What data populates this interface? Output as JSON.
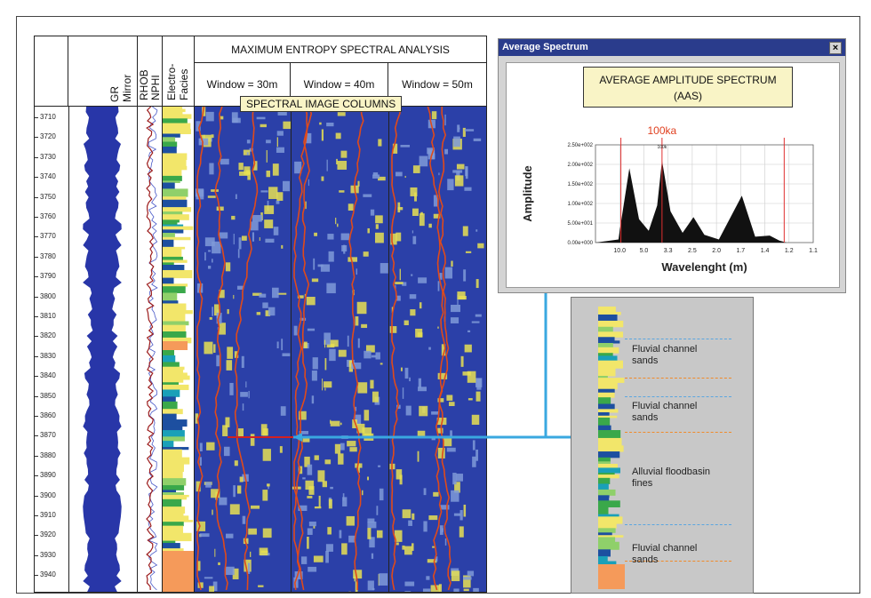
{
  "log_panel": {
    "headers": {
      "gr": "GR",
      "mirror": "Mirror",
      "rhob": "RHOB",
      "nphi": "NPHI",
      "electro": "Electro-",
      "facies": "Facies",
      "mesa_title": "MAXIMUM ENTROPY SPECTRAL ANALYSIS",
      "windows": [
        "Window = 30m",
        "Window = 40m",
        "Window = 50m"
      ]
    },
    "spectral_label": "SPECTRAL IMAGE COLUMNS",
    "depths": [
      "3710",
      "3720",
      "3730",
      "3740",
      "3750",
      "3760",
      "3770",
      "3780",
      "3790",
      "3800",
      "3810",
      "3820",
      "3830",
      "3840",
      "3850",
      "3860",
      "3870",
      "3880",
      "3890",
      "3900",
      "3910",
      "3920",
      "3930",
      "3940"
    ]
  },
  "average_spectrum": {
    "window_title": "Average Spectrum",
    "close_label": "×",
    "aas_title_line1": "AVERAGE AMPLITUDE SPECTRUM",
    "aas_title_line2": "(AAS)",
    "marker_label": "100ka",
    "marker_small": "100k",
    "chart_data": {
      "type": "area",
      "ylabel": "Amplitude",
      "xlabel": "Wavelenght (m)",
      "y_ticks": [
        "2.50e+002",
        "2.00e+002",
        "1.50e+002",
        "1.00e+002",
        "5.00e+001",
        "0.00e+000"
      ],
      "x_ticks": [
        "10.0",
        "5.0",
        "3.3",
        "2.5",
        "2.0",
        "1.7",
        "1.4",
        "1.2",
        "1.1"
      ],
      "ylim": [
        0,
        250
      ],
      "peaks": [
        {
          "x": 0.95,
          "y": 8
        },
        {
          "x": 1.0,
          "y": 30
        },
        {
          "x": 1.4,
          "y": 190
        },
        {
          "x": 1.8,
          "y": 60
        },
        {
          "x": 2.2,
          "y": 30
        },
        {
          "x": 2.55,
          "y": 95
        },
        {
          "x": 2.75,
          "y": 210
        },
        {
          "x": 3.1,
          "y": 80
        },
        {
          "x": 3.6,
          "y": 25
        },
        {
          "x": 4.05,
          "y": 65
        },
        {
          "x": 4.5,
          "y": 20
        },
        {
          "x": 5.1,
          "y": 8
        },
        {
          "x": 6.05,
          "y": 120
        },
        {
          "x": 6.6,
          "y": 15
        },
        {
          "x": 7.2,
          "y": 18
        },
        {
          "x": 7.6,
          "y": 5
        }
      ],
      "red_lines_at": [
        1.05,
        2.75,
        7.8
      ]
    }
  },
  "zoom_panel": {
    "labels": [
      {
        "line1": "Fluvial channel",
        "line2": "sands"
      },
      {
        "line1": "Fluvial channel",
        "line2": "sands"
      },
      {
        "line1": "Alluvial floodbasin",
        "line2": "fines"
      },
      {
        "line1": "Fluvial channel",
        "line2": "sands"
      }
    ]
  },
  "colors": {
    "spectrum_bg": "#2b40a8",
    "gr_fill": "#2836a8",
    "facies_yellow": "#f2e66a",
    "facies_green": "#3aa84a",
    "facies_blue": "#1d4fa0",
    "facies_orange": "#f59a5a",
    "connector": "#3aa8e0",
    "dash_blue": "#5aa6e0",
    "dash_orange": "#f08a2a"
  }
}
